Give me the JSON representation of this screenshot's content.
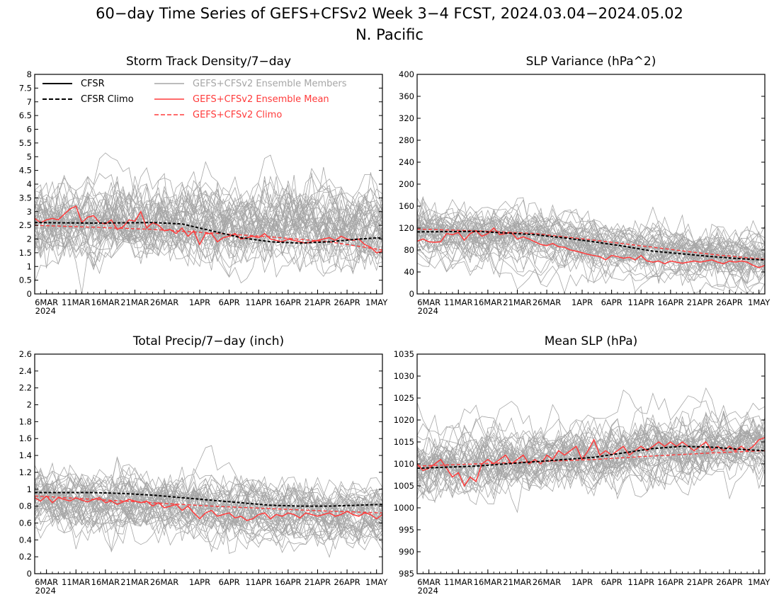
{
  "figure": {
    "title_line1": "60−day Time Series of GEFS+CFSv2 Week 3−4 FCST, 2024.03.04−2024.05.02",
    "title_line2": "N. Pacific"
  },
  "colors": {
    "obs": "#000000",
    "members": "#a6a6a6",
    "ens_mean": "#ff3b3b"
  },
  "legend": {
    "cfsr": "CFSR",
    "cfsr_climo": "CFSR Climo",
    "members": "GEFS+CFSv2 Ensemble Members",
    "ens_mean": "GEFS+CFSv2 Ensemble Mean",
    "ens_climo": "GEFS+CFSv2 Climo"
  },
  "x_axis": {
    "tick_labels": [
      "6MAR",
      "11MAR",
      "16MAR",
      "21MAR",
      "26MAR",
      "1APR",
      "6APR",
      "11APR",
      "16APR",
      "21APR",
      "26APR",
      "1MAY"
    ],
    "tick_days": [
      2,
      7,
      12,
      17,
      22,
      28,
      33,
      38,
      43,
      48,
      53,
      58
    ],
    "year_label": "2024",
    "day_range": [
      0,
      59
    ]
  },
  "chart_data": [
    {
      "type": "line",
      "title": "Storm Track Density/7−day",
      "ylim": [
        0,
        8
      ],
      "yticks": [
        "0",
        "0.5",
        "1",
        "1.5",
        "2",
        "2.5",
        "3",
        "3.5",
        "4",
        "4.5",
        "5",
        "5.5",
        "6",
        "6.5",
        "7",
        "7.5",
        "8"
      ],
      "member_center": [
        2.7,
        2.62,
        2.55,
        2.5
      ],
      "member_spread": 0.9,
      "cfsr_climo": [
        [
          0,
          2.6
        ],
        [
          10,
          2.58
        ],
        [
          20,
          2.6
        ],
        [
          25,
          2.55
        ],
        [
          30,
          2.3
        ],
        [
          35,
          2.05
        ],
        [
          40,
          1.9
        ],
        [
          45,
          1.85
        ],
        [
          50,
          1.9
        ],
        [
          55,
          2.0
        ],
        [
          59,
          2.05
        ]
      ],
      "ens_climo": [
        [
          0,
          2.5
        ],
        [
          10,
          2.43
        ],
        [
          20,
          2.35
        ],
        [
          30,
          2.22
        ],
        [
          40,
          2.08
        ],
        [
          50,
          1.9
        ],
        [
          59,
          1.6
        ]
      ],
      "ens_mean": [
        2.75,
        2.6,
        2.7,
        2.75,
        2.7,
        2.9,
        3.1,
        3.2,
        2.6,
        2.8,
        2.85,
        2.6,
        2.55,
        2.7,
        2.35,
        2.45,
        2.7,
        2.65,
        3.0,
        2.4,
        2.6,
        2.5,
        2.3,
        2.35,
        2.2,
        2.4,
        2.1,
        2.3,
        1.8,
        2.2,
        2.2,
        1.9,
        2.05,
        2.1,
        2.2,
        2.0,
        2.05,
        2.1,
        2.05,
        2.2,
        2.0,
        1.95,
        1.9,
        2.0,
        1.95,
        1.9,
        1.85,
        1.9,
        1.95,
        2.0,
        2.05,
        1.95,
        2.1,
        2.0,
        1.95,
        2.0,
        1.8,
        1.7,
        1.5,
        1.55
      ]
    },
    {
      "type": "line",
      "title": "SLP Variance (hPa^2)",
      "ylim": [
        0,
        400
      ],
      "yticks": [
        "0",
        "40",
        "80",
        "120",
        "160",
        "200",
        "240",
        "280",
        "320",
        "360",
        "400"
      ],
      "member_center": [
        110,
        100,
        75,
        58
      ],
      "member_spread": 30,
      "cfsr_climo": [
        [
          0,
          113
        ],
        [
          10,
          114
        ],
        [
          20,
          108
        ],
        [
          25,
          102
        ],
        [
          30,
          95
        ],
        [
          35,
          87
        ],
        [
          40,
          78
        ],
        [
          45,
          73
        ],
        [
          50,
          68
        ],
        [
          55,
          64
        ],
        [
          59,
          62
        ]
      ],
      "ens_climo": [
        [
          0,
          118
        ],
        [
          10,
          115
        ],
        [
          20,
          110
        ],
        [
          30,
          98
        ],
        [
          40,
          85
        ],
        [
          50,
          72
        ],
        [
          59,
          63
        ]
      ],
      "ens_mean": [
        96,
        100,
        95,
        94,
        95,
        110,
        108,
        112,
        98,
        110,
        115,
        105,
        110,
        120,
        108,
        110,
        112,
        100,
        104,
        100,
        95,
        90,
        88,
        92,
        86,
        85,
        80,
        78,
        75,
        72,
        70,
        68,
        62,
        70,
        68,
        65,
        67,
        62,
        70,
        60,
        58,
        60,
        55,
        60,
        58,
        56,
        58,
        60,
        58,
        60,
        62,
        58,
        55,
        60,
        58,
        60,
        58,
        52,
        48,
        52
      ]
    },
    {
      "type": "line",
      "title": "Total Precip/7−day (inch)",
      "ylim": [
        0,
        2.6
      ],
      "yticks": [
        "0",
        "0.2",
        "0.4",
        "0.6",
        "0.8",
        "1",
        "1.2",
        "1.4",
        "1.6",
        "1.8",
        "2",
        "2.2",
        "2.4",
        "2.6"
      ],
      "member_center": [
        0.9,
        0.86,
        0.76,
        0.7
      ],
      "member_spread": 0.22,
      "cfsr_climo": [
        [
          0,
          0.96
        ],
        [
          10,
          0.96
        ],
        [
          15,
          0.95
        ],
        [
          20,
          0.93
        ],
        [
          25,
          0.9
        ],
        [
          30,
          0.87
        ],
        [
          35,
          0.84
        ],
        [
          40,
          0.81
        ],
        [
          45,
          0.8
        ],
        [
          50,
          0.8
        ],
        [
          59,
          0.82
        ]
      ],
      "ens_climo": [
        [
          0,
          0.92
        ],
        [
          10,
          0.88
        ],
        [
          20,
          0.84
        ],
        [
          30,
          0.8
        ],
        [
          40,
          0.77
        ],
        [
          50,
          0.74
        ],
        [
          59,
          0.72
        ]
      ],
      "ens_mean": [
        0.9,
        0.86,
        0.92,
        0.84,
        0.9,
        0.88,
        0.86,
        0.9,
        0.87,
        0.85,
        0.88,
        0.9,
        0.84,
        0.86,
        0.82,
        0.85,
        0.88,
        0.86,
        0.84,
        0.86,
        0.8,
        0.84,
        0.78,
        0.8,
        0.82,
        0.75,
        0.8,
        0.72,
        0.65,
        0.72,
        0.75,
        0.68,
        0.7,
        0.72,
        0.66,
        0.68,
        0.63,
        0.65,
        0.7,
        0.72,
        0.65,
        0.7,
        0.68,
        0.72,
        0.7,
        0.66,
        0.72,
        0.7,
        0.68,
        0.7,
        0.72,
        0.68,
        0.7,
        0.74,
        0.7,
        0.68,
        0.72,
        0.7,
        0.65,
        0.7
      ]
    },
    {
      "type": "line",
      "title": "Mean SLP (hPa)",
      "ylim": [
        985,
        1035
      ],
      "yticks": [
        "985",
        "990",
        "995",
        "1000",
        "1005",
        "1010",
        "1015",
        "1020",
        "1025",
        "1030",
        "1035"
      ],
      "member_center": [
        1009,
        1010.5,
        1012.5,
        1014
      ],
      "member_spread": 4.5,
      "cfsr_climo": [
        [
          0,
          1009
        ],
        [
          10,
          1009.5
        ],
        [
          20,
          1010.5
        ],
        [
          30,
          1011.5
        ],
        [
          35,
          1012.5
        ],
        [
          40,
          1013.5
        ],
        [
          45,
          1014
        ],
        [
          50,
          1013.8
        ],
        [
          55,
          1013.3
        ],
        [
          59,
          1013
        ]
      ],
      "ens_climo": [
        [
          0,
          1009.5
        ],
        [
          10,
          1010
        ],
        [
          20,
          1010.5
        ],
        [
          30,
          1011
        ],
        [
          40,
          1011.8
        ],
        [
          50,
          1012.5
        ],
        [
          59,
          1013
        ]
      ],
      "ens_mean": [
        1010,
        1008.5,
        1009,
        1010,
        1011,
        1009,
        1007,
        1008,
        1005,
        1007,
        1006,
        1010,
        1011,
        1010,
        1011,
        1012,
        1010,
        1011,
        1012,
        1010,
        1011,
        1010,
        1012,
        1011,
        1013,
        1012,
        1013,
        1014,
        1011,
        1013,
        1015.5,
        1012,
        1013,
        1012,
        1013,
        1014,
        1012,
        1013,
        1014,
        1013,
        1014,
        1015,
        1014,
        1015,
        1014,
        1015,
        1014,
        1013,
        1014,
        1015,
        1013,
        1014,
        1013,
        1014,
        1013,
        1014,
        1013,
        1014,
        1015.5,
        1016
      ]
    }
  ]
}
